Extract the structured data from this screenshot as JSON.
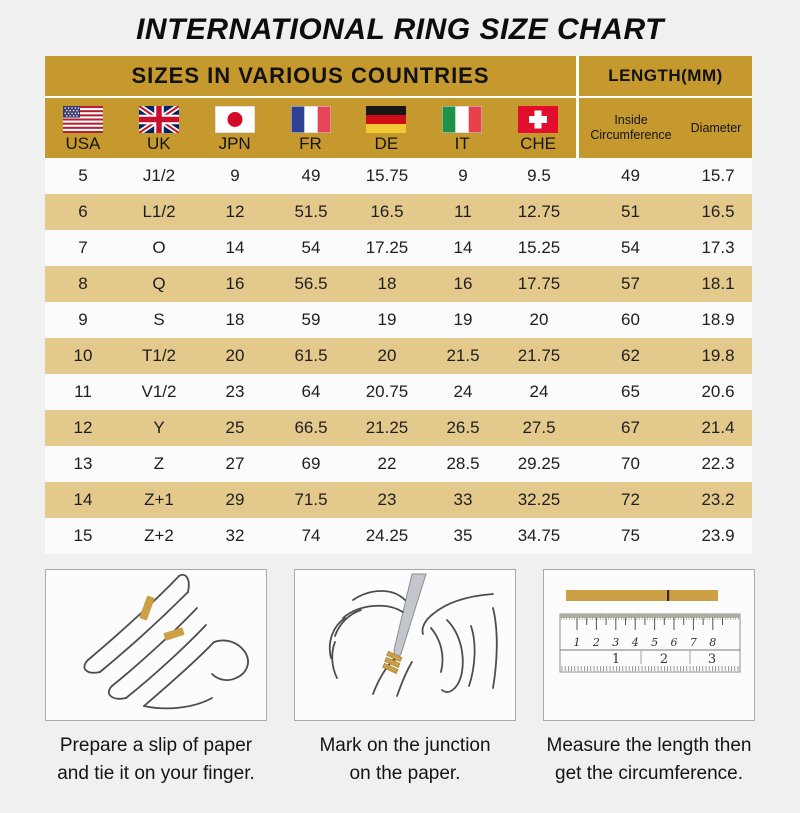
{
  "title": "INTERNATIONAL RING SIZE CHART",
  "table": {
    "section_header": "SIZES IN VARIOUS COUNTRIES",
    "length_header": "LENGTH(MM)",
    "countries": [
      {
        "label": "USA",
        "flag_icon": "usa-flag"
      },
      {
        "label": "UK",
        "flag_icon": "uk-flag"
      },
      {
        "label": "JPN",
        "flag_icon": "japan-flag"
      },
      {
        "label": "FR",
        "flag_icon": "france-flag"
      },
      {
        "label": "DE",
        "flag_icon": "germany-flag"
      },
      {
        "label": "IT",
        "flag_icon": "italy-flag"
      },
      {
        "label": "CHE",
        "flag_icon": "switzerland-flag"
      }
    ],
    "length_columns": {
      "circumference_line1": "Inside",
      "circumference_line2": "Circumference",
      "diameter": "Diameter"
    }
  },
  "chart_data": {
    "type": "table",
    "title": "INTERNATIONAL RING SIZE CHART",
    "columns": [
      "USA",
      "UK",
      "JPN",
      "FR",
      "DE",
      "IT",
      "CHE",
      "Inside Circumference",
      "Diameter"
    ],
    "rows": [
      [
        "5",
        "J1/2",
        "9",
        "49",
        "15.75",
        "9",
        "9.5",
        "49",
        "15.7"
      ],
      [
        "6",
        "L1/2",
        "12",
        "51.5",
        "16.5",
        "11",
        "12.75",
        "51",
        "16.5"
      ],
      [
        "7",
        "O",
        "14",
        "54",
        "17.25",
        "14",
        "15.25",
        "54",
        "17.3"
      ],
      [
        "8",
        "Q",
        "16",
        "56.5",
        "18",
        "16",
        "17.75",
        "57",
        "18.1"
      ],
      [
        "9",
        "S",
        "18",
        "59",
        "19",
        "19",
        "20",
        "60",
        "18.9"
      ],
      [
        "10",
        "T1/2",
        "20",
        "61.5",
        "20",
        "21.5",
        "21.75",
        "62",
        "19.8"
      ],
      [
        "11",
        "V1/2",
        "23",
        "64",
        "20.75",
        "24",
        "24",
        "65",
        "20.6"
      ],
      [
        "12",
        "Y",
        "25",
        "66.5",
        "21.25",
        "26.5",
        "27.5",
        "67",
        "21.4"
      ],
      [
        "13",
        "Z",
        "27",
        "69",
        "22",
        "28.5",
        "29.25",
        "70",
        "22.3"
      ],
      [
        "14",
        "Z+1",
        "29",
        "71.5",
        "23",
        "33",
        "32.25",
        "72",
        "23.2"
      ],
      [
        "15",
        "Z+2",
        "32",
        "74",
        "24.25",
        "35",
        "34.75",
        "75",
        "23.9"
      ]
    ]
  },
  "steps": [
    {
      "illustration": "hand-with-paper-slip",
      "caption": [
        "Prepare a slip of paper",
        "and tie it on your finger."
      ]
    },
    {
      "illustration": "pen-marking-junction",
      "caption": [
        "Mark on the junction",
        "on the paper."
      ]
    },
    {
      "illustration": "ruler-measuring-strip",
      "caption": [
        "Measure the length then",
        "get the circumference."
      ]
    }
  ],
  "ruler": {
    "cm_numbers": [
      "1",
      "2",
      "3",
      "4",
      "5",
      "6",
      "7",
      "8"
    ],
    "inch_numbers": [
      "1",
      "2",
      "3"
    ]
  },
  "colors": {
    "header_gold": "#C6992F",
    "row_tan": "#E4C98C",
    "row_light": "#FBFBFB",
    "page_bg": "#F0F0F0",
    "paper_strip_gold": "#CDA045"
  }
}
